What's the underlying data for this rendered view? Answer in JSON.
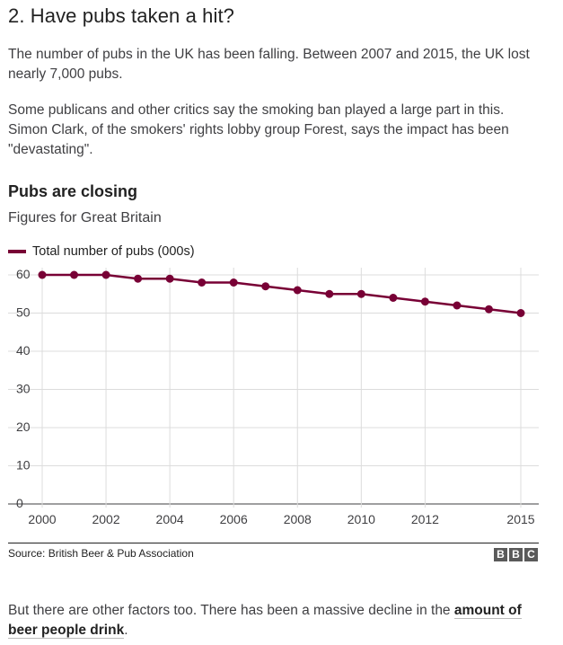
{
  "article": {
    "heading": "2. Have pubs taken a hit?",
    "para1": "The number of pubs in the UK has been falling. Between 2007 and 2015, the UK lost nearly 7,000 pubs.",
    "para2": "Some publicans and other critics say the smoking ban played a large part in this. Simon Clark, of the smokers' rights lobby group Forest, says the impact has been \"devastating\".",
    "para3_before": "But there are other factors too. There has been a massive decline in the ",
    "para3_link": "amount of beer people drink",
    "para3_after": "."
  },
  "chart_data": {
    "type": "line",
    "title": "Pubs are closing",
    "subtitle": "Figures for Great Britain",
    "xlabel": "",
    "ylabel": "",
    "x": [
      2000,
      2001,
      2002,
      2003,
      2004,
      2005,
      2006,
      2007,
      2008,
      2009,
      2010,
      2011,
      2012,
      2013,
      2014,
      2015
    ],
    "series": [
      {
        "name": "Total number of pubs (000s)",
        "color": "#780035",
        "values": [
          60,
          60,
          60,
          59,
          59,
          58,
          58,
          57,
          56,
          55,
          55,
          54,
          53,
          52,
          51,
          50
        ]
      }
    ],
    "xlim": [
      2000,
      2015
    ],
    "ylim": [
      0,
      60
    ],
    "xticks": [
      2000,
      2002,
      2004,
      2006,
      2008,
      2010,
      2012,
      2015
    ],
    "xtick_labels": [
      "2000",
      "2002",
      "2004",
      "2006",
      "2008",
      "2010",
      "2012",
      "2015"
    ],
    "yticks": [
      0,
      10,
      20,
      30,
      40,
      50,
      60
    ],
    "ytick_labels": [
      "0",
      "10",
      "20",
      "30",
      "40",
      "50",
      "60"
    ],
    "grid": true,
    "legend": "top-left"
  },
  "footer": {
    "source": "Source: British Beer & Pub Association",
    "logo_letters": [
      "B",
      "B",
      "C"
    ]
  },
  "colors": {
    "series": "#780035",
    "grid": "#dcdcdc",
    "axis": "#3f3f42"
  }
}
